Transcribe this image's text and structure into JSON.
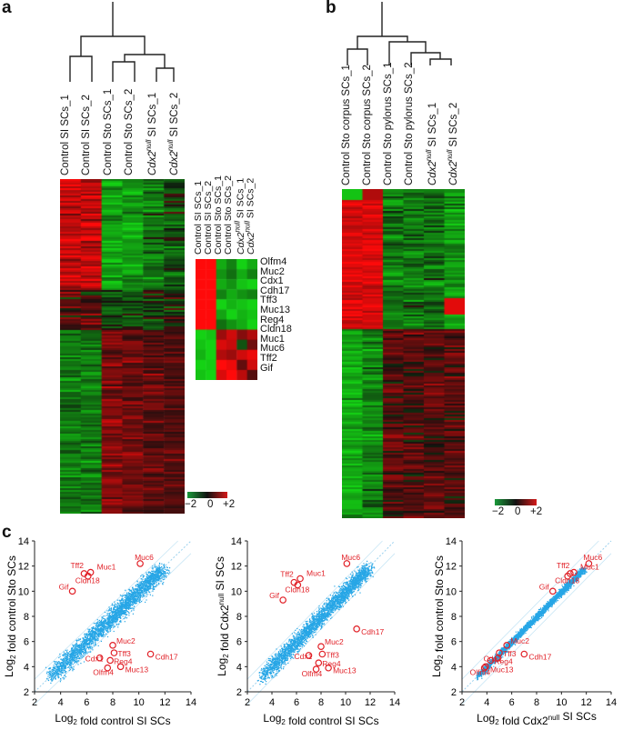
{
  "panels": {
    "a": "a",
    "b": "b",
    "c": "c"
  },
  "panel_a": {
    "columns": [
      {
        "text": "Control SI SCs_1"
      },
      {
        "text": "Control SI SCs_2"
      },
      {
        "text": "Control Sto SCs_1"
      },
      {
        "text": "Control Sto SCs_2"
      },
      {
        "pre": "Cdx2",
        "sup": "null",
        "post": " SI SCs_1"
      },
      {
        "pre": "Cdx2",
        "sup": "null",
        "post": " SI SCs_2"
      }
    ],
    "inset_genes": [
      "Olfm4",
      "Muc2",
      "Cdx1",
      "Cdh17",
      "Tff3",
      "Muc13",
      "Reg4",
      "Cldn18",
      "Muc1",
      "Muc6",
      "Tff2",
      "Gif"
    ],
    "legend": {
      "min": "−2",
      "mid": "0",
      "max": "+2"
    }
  },
  "panel_b": {
    "columns": [
      {
        "text": "Control Sto corpus SCs_1"
      },
      {
        "text": "Control Sto corpus SCs_2"
      },
      {
        "text": "Control Sto pylorus SCs_1"
      },
      {
        "text": "Control Sto pylorus SCs_2"
      },
      {
        "pre": "Cdx2",
        "sup": "null",
        "post": " SI SCs_1"
      },
      {
        "pre": "Cdx2",
        "sup": "null",
        "post": " SI SCs_2"
      }
    ],
    "legend": {
      "min": "−2",
      "mid": "0",
      "max": "+2"
    }
  },
  "colors": {
    "heat_red": "#ff1a1a",
    "heat_green": "#1fd21f",
    "scatter_blue": "#27a6e6",
    "highlight_red": "#e11f26"
  },
  "chart_data": [
    {
      "type": "scatter",
      "xlabel": "Log2 fold control SI SCs",
      "ylabel": "Log2 fold control Sto SCs",
      "xlim": [
        2,
        14
      ],
      "ylim": [
        2,
        14
      ],
      "ticks": [
        2,
        4,
        6,
        8,
        10,
        12,
        14
      ],
      "highlighted": [
        {
          "gene": "Muc6",
          "x": 10.1,
          "y": 12.2
        },
        {
          "gene": "Tff2",
          "x": 5.8,
          "y": 11.4
        },
        {
          "gene": "Muc1",
          "x": 6.3,
          "y": 11.5
        },
        {
          "gene": "Cldn18",
          "x": 6.1,
          "y": 11.2
        },
        {
          "gene": "Gif",
          "x": 4.9,
          "y": 10.0
        },
        {
          "gene": "Muc2",
          "x": 8.0,
          "y": 5.7
        },
        {
          "gene": "Tff3",
          "x": 8.1,
          "y": 5.1
        },
        {
          "gene": "Cdh17",
          "x": 10.9,
          "y": 5.0
        },
        {
          "gene": "Cdx1",
          "x": 7.0,
          "y": 4.7
        },
        {
          "gene": "Reg4",
          "x": 7.8,
          "y": 4.5
        },
        {
          "gene": "Olfm4",
          "x": 7.6,
          "y": 3.9
        },
        {
          "gene": "Muc13",
          "x": 8.6,
          "y": 4.0
        }
      ]
    },
    {
      "type": "scatter",
      "xlabel": "Log2 fold control SI SCs",
      "ylabel": "Log2 fold Cdx2null SI SCs",
      "xlim": [
        2,
        14
      ],
      "ylim": [
        2,
        14
      ],
      "ticks": [
        2,
        4,
        6,
        8,
        10,
        12,
        14
      ],
      "highlighted": [
        {
          "gene": "Muc6",
          "x": 10.1,
          "y": 12.2
        },
        {
          "gene": "Tff2",
          "x": 5.8,
          "y": 10.7
        },
        {
          "gene": "Muc1",
          "x": 6.3,
          "y": 11.0
        },
        {
          "gene": "Cldn18",
          "x": 6.1,
          "y": 10.5
        },
        {
          "gene": "Gif",
          "x": 4.9,
          "y": 9.3
        },
        {
          "gene": "Muc2",
          "x": 8.0,
          "y": 5.6
        },
        {
          "gene": "Tff3",
          "x": 8.1,
          "y": 5.0
        },
        {
          "gene": "Cdh17",
          "x": 10.9,
          "y": 7.0
        },
        {
          "gene": "Cdx1",
          "x": 7.0,
          "y": 4.9
        },
        {
          "gene": "Reg4",
          "x": 7.8,
          "y": 4.3
        },
        {
          "gene": "Olfm4",
          "x": 7.6,
          "y": 3.8
        },
        {
          "gene": "Muc13",
          "x": 8.6,
          "y": 3.9
        }
      ]
    },
    {
      "type": "scatter",
      "xlabel": "Log2 fold Cdx2null SI SCs",
      "ylabel": "Log2 fold control Sto SCs",
      "xlim": [
        2,
        14
      ],
      "ylim": [
        2,
        14
      ],
      "ticks": [
        2,
        4,
        6,
        8,
        10,
        12,
        14
      ],
      "highlighted": [
        {
          "gene": "Muc6",
          "x": 12.2,
          "y": 12.2
        },
        {
          "gene": "Tff2",
          "x": 10.7,
          "y": 11.4
        },
        {
          "gene": "Muc1",
          "x": 11.0,
          "y": 11.5
        },
        {
          "gene": "Cldn18",
          "x": 10.5,
          "y": 11.2
        },
        {
          "gene": "Gif",
          "x": 9.3,
          "y": 10.0
        },
        {
          "gene": "Muc2",
          "x": 5.6,
          "y": 5.7
        },
        {
          "gene": "Tff3",
          "x": 5.0,
          "y": 5.1
        },
        {
          "gene": "Cdh17",
          "x": 7.0,
          "y": 5.0
        },
        {
          "gene": "Cdx1",
          "x": 4.9,
          "y": 4.7
        },
        {
          "gene": "Reg4",
          "x": 4.3,
          "y": 4.5
        },
        {
          "gene": "Olfm4",
          "x": 3.8,
          "y": 3.9
        },
        {
          "gene": "Muc13",
          "x": 3.9,
          "y": 4.0
        }
      ]
    }
  ]
}
